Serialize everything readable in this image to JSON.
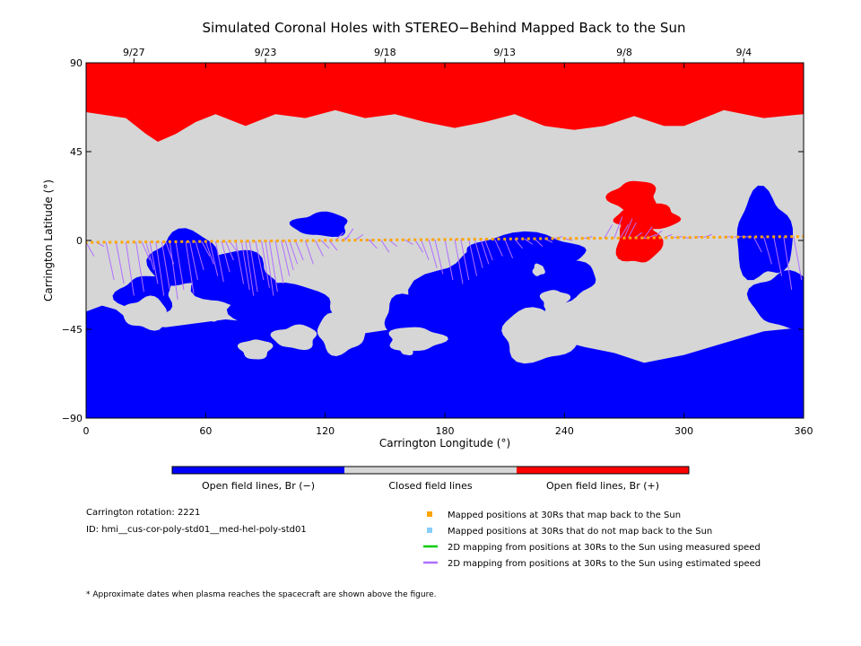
{
  "chart_data": {
    "type": "map",
    "title": "Simulated Coronal Holes with STEREO−Behind Mapped Back to the Sun",
    "xlabel": "Carrington Longitude (°)",
    "ylabel": "Carrington Latitude (°)",
    "xlim": [
      0,
      360
    ],
    "ylim": [
      -90,
      90
    ],
    "x_ticks": [
      0,
      60,
      120,
      180,
      240,
      300,
      360
    ],
    "y_ticks": [
      -90,
      -45,
      0,
      45,
      90
    ],
    "top_dates": [
      {
        "lon": 24,
        "label": "9/27"
      },
      {
        "lon": 90,
        "label": "9/23"
      },
      {
        "lon": 150,
        "label": "9/18"
      },
      {
        "lon": 210,
        "label": "9/13"
      },
      {
        "lon": 270,
        "label": "9/8"
      },
      {
        "lon": 330,
        "label": "9/4"
      }
    ],
    "colorbar": [
      {
        "label": "Open field lines, Br (−)",
        "color": "#0000ff"
      },
      {
        "label": "Closed field lines",
        "color": "#d6d6d6"
      },
      {
        "label": "Open field lines, Br (+)",
        "color": "#ff0000"
      }
    ],
    "legend": [
      {
        "label": "Mapped positions at 30Rs that map back to the Sun",
        "color": "#ffa500",
        "marker": "square"
      },
      {
        "label": "Mapped positions at 30Rs that do not map back to the Sun",
        "color": "#87cefa",
        "marker": "square"
      },
      {
        "label": "2D mapping from positions at 30Rs to the Sun using measured speed",
        "color": "#00cc00",
        "marker": "line"
      },
      {
        "label": "2D mapping from positions at 30Rs to the Sun using estimated speed",
        "color": "#b070ff",
        "marker": "line"
      }
    ],
    "north_boundary": [
      [
        0,
        65
      ],
      [
        20,
        62
      ],
      [
        30,
        54
      ],
      [
        36,
        50
      ],
      [
        45,
        54
      ],
      [
        55,
        60
      ],
      [
        65,
        64
      ],
      [
        80,
        58
      ],
      [
        95,
        64
      ],
      [
        110,
        62
      ],
      [
        125,
        66
      ],
      [
        140,
        62
      ],
      [
        155,
        64
      ],
      [
        170,
        60
      ],
      [
        185,
        57
      ],
      [
        200,
        60
      ],
      [
        215,
        64
      ],
      [
        230,
        58
      ],
      [
        245,
        56
      ],
      [
        260,
        58
      ],
      [
        275,
        63
      ],
      [
        290,
        58
      ],
      [
        300,
        58
      ],
      [
        320,
        66
      ],
      [
        340,
        62
      ],
      [
        360,
        64
      ]
    ],
    "south_boundary": [
      [
        0,
        -36
      ],
      [
        8,
        -33
      ],
      [
        15,
        -35
      ],
      [
        25,
        -43
      ],
      [
        40,
        -44
      ],
      [
        55,
        -42
      ],
      [
        70,
        -40
      ],
      [
        90,
        -42
      ],
      [
        110,
        -40
      ],
      [
        120,
        -45
      ],
      [
        140,
        -47
      ],
      [
        160,
        -44
      ],
      [
        180,
        -48
      ],
      [
        200,
        -52
      ],
      [
        220,
        -52
      ],
      [
        235,
        -50
      ],
      [
        250,
        -54
      ],
      [
        265,
        -57
      ],
      [
        280,
        -62
      ],
      [
        300,
        -58
      ],
      [
        320,
        -52
      ],
      [
        340,
        -46
      ],
      [
        360,
        -44
      ]
    ],
    "trajectory": {
      "lon": [
        0,
        360
      ],
      "lat": [
        -1,
        2
      ]
    },
    "sun_footpoints": [
      [
        0,
        -8
      ],
      [
        5,
        -3
      ],
      [
        10,
        -20
      ],
      [
        15,
        -22
      ],
      [
        20,
        -28
      ],
      [
        25,
        -26
      ],
      [
        28,
        -10
      ],
      [
        30,
        -15
      ],
      [
        32,
        -22
      ],
      [
        35,
        -28
      ],
      [
        38,
        -25
      ],
      [
        40,
        -12
      ],
      [
        42,
        -30
      ],
      [
        45,
        -25
      ],
      [
        50,
        -27
      ],
      [
        52,
        -20
      ],
      [
        55,
        -15
      ],
      [
        58,
        -8
      ],
      [
        60,
        -12
      ],
      [
        62,
        -18
      ],
      [
        65,
        -21
      ],
      [
        68,
        -16
      ],
      [
        70,
        -10
      ],
      [
        72,
        -6
      ],
      [
        75,
        -22
      ],
      [
        78,
        -25
      ],
      [
        80,
        -28
      ],
      [
        82,
        -26
      ],
      [
        85,
        -20
      ],
      [
        88,
        -24
      ],
      [
        90,
        -28
      ],
      [
        92,
        -26
      ],
      [
        95,
        -22
      ],
      [
        98,
        -18
      ],
      [
        100,
        -15
      ],
      [
        102,
        -12
      ],
      [
        105,
        -10
      ],
      [
        110,
        -12
      ],
      [
        115,
        -8
      ],
      [
        118,
        -4
      ],
      [
        122,
        -5
      ],
      [
        125,
        4
      ],
      [
        128,
        2
      ],
      [
        130,
        6
      ],
      [
        135,
        3
      ],
      [
        140,
        0
      ],
      [
        142,
        -4
      ],
      [
        148,
        -6
      ],
      [
        152,
        -3
      ],
      [
        160,
        -2
      ],
      [
        165,
        -6
      ],
      [
        168,
        -10
      ],
      [
        172,
        -14
      ],
      [
        175,
        -17
      ],
      [
        180,
        -20
      ],
      [
        185,
        -22
      ],
      [
        188,
        -20
      ],
      [
        192,
        -18
      ],
      [
        195,
        -14
      ],
      [
        198,
        -12
      ],
      [
        200,
        -10
      ],
      [
        205,
        -8
      ],
      [
        210,
        -9
      ],
      [
        215,
        -4
      ],
      [
        220,
        -2
      ],
      [
        225,
        -3
      ],
      [
        230,
        -1
      ],
      [
        235,
        2
      ],
      [
        240,
        0
      ],
      [
        250,
        2
      ],
      [
        260,
        8
      ],
      [
        265,
        12
      ],
      [
        268,
        8
      ],
      [
        270,
        11
      ],
      [
        272,
        9
      ],
      [
        275,
        4
      ],
      [
        278,
        1
      ],
      [
        280,
        7
      ],
      [
        282,
        3
      ],
      [
        285,
        5
      ],
      [
        290,
        3
      ],
      [
        295,
        2
      ],
      [
        300,
        1
      ],
      [
        305,
        2
      ],
      [
        310,
        3
      ],
      [
        320,
        2
      ],
      [
        325,
        2
      ],
      [
        330,
        2
      ],
      [
        335,
        -6
      ],
      [
        340,
        -12
      ],
      [
        345,
        -18
      ],
      [
        350,
        -25
      ],
      [
        355,
        -20
      ],
      [
        360,
        -7
      ]
    ],
    "holes_neg": [
      {
        "lon": 50,
        "lat": -10,
        "dlon": 18,
        "dlat": 14
      },
      {
        "lon": 75,
        "lat": -20,
        "dlon": 20,
        "dlat": 14
      },
      {
        "lon": 100,
        "lat": -35,
        "dlon": 26,
        "dlat": 12
      },
      {
        "lon": 118,
        "lat": 8,
        "dlon": 14,
        "dlat": 6
      },
      {
        "lon": 200,
        "lat": -30,
        "dlon": 35,
        "dlat": 26
      },
      {
        "lon": 220,
        "lat": -5,
        "dlon": 30,
        "dlat": 8
      },
      {
        "lon": 236,
        "lat": -20,
        "dlon": 20,
        "dlat": 10
      },
      {
        "lon": 30,
        "lat": -28,
        "dlon": 14,
        "dlat": 10
      },
      {
        "lon": 340,
        "lat": 2,
        "dlon": 14,
        "dlat": 22
      },
      {
        "lon": 350,
        "lat": -30,
        "dlon": 16,
        "dlat": 14
      },
      {
        "lon": 165,
        "lat": -40,
        "dlon": 16,
        "dlat": 12
      }
    ],
    "holes_gray_in_blue": [
      {
        "lon": 30,
        "lat": -37,
        "dlon": 11,
        "dlat": 8
      },
      {
        "lon": 62,
        "lat": -37,
        "dlon": 5,
        "dlat": 4
      },
      {
        "lon": 85,
        "lat": -55,
        "dlon": 8,
        "dlat": 5
      },
      {
        "lon": 105,
        "lat": -49,
        "dlon": 11,
        "dlat": 6
      },
      {
        "lon": 128,
        "lat": -47,
        "dlon": 12,
        "dlat": 10
      },
      {
        "lon": 161,
        "lat": -55,
        "dlon": 4,
        "dlat": 3
      },
      {
        "lon": 165,
        "lat": -50,
        "dlon": 14,
        "dlat": 6
      },
      {
        "lon": 228,
        "lat": -48,
        "dlon": 20,
        "dlat": 13
      },
      {
        "lon": 235,
        "lat": -30,
        "dlon": 7,
        "dlat": 5
      },
      {
        "lon": 227,
        "lat": -15,
        "dlon": 3,
        "dlat": 3
      }
    ],
    "holes_pos": [
      {
        "lon": 275,
        "lat": 22,
        "dlon": 12,
        "dlat": 8
      },
      {
        "lon": 282,
        "lat": 12,
        "dlon": 16,
        "dlat": 6
      },
      {
        "lon": 277,
        "lat": 0,
        "dlon": 11,
        "dlat": 12
      }
    ]
  },
  "info": {
    "carrington_rotation": "Carrington rotation: 2221",
    "model_id": "ID: hmi__cus-cor-poly-std01__med-hel-poly-std01",
    "footnote": "* Approximate dates when plasma reaches the spacecraft are shown above the figure."
  },
  "colors": {
    "negative": "#0000ff",
    "closed": "#d6d6d6",
    "positive": "#ff0000",
    "mapped": "#ffa500",
    "unmapped": "#87cefa",
    "measured": "#00cc00",
    "estimated": "#b070ff"
  }
}
